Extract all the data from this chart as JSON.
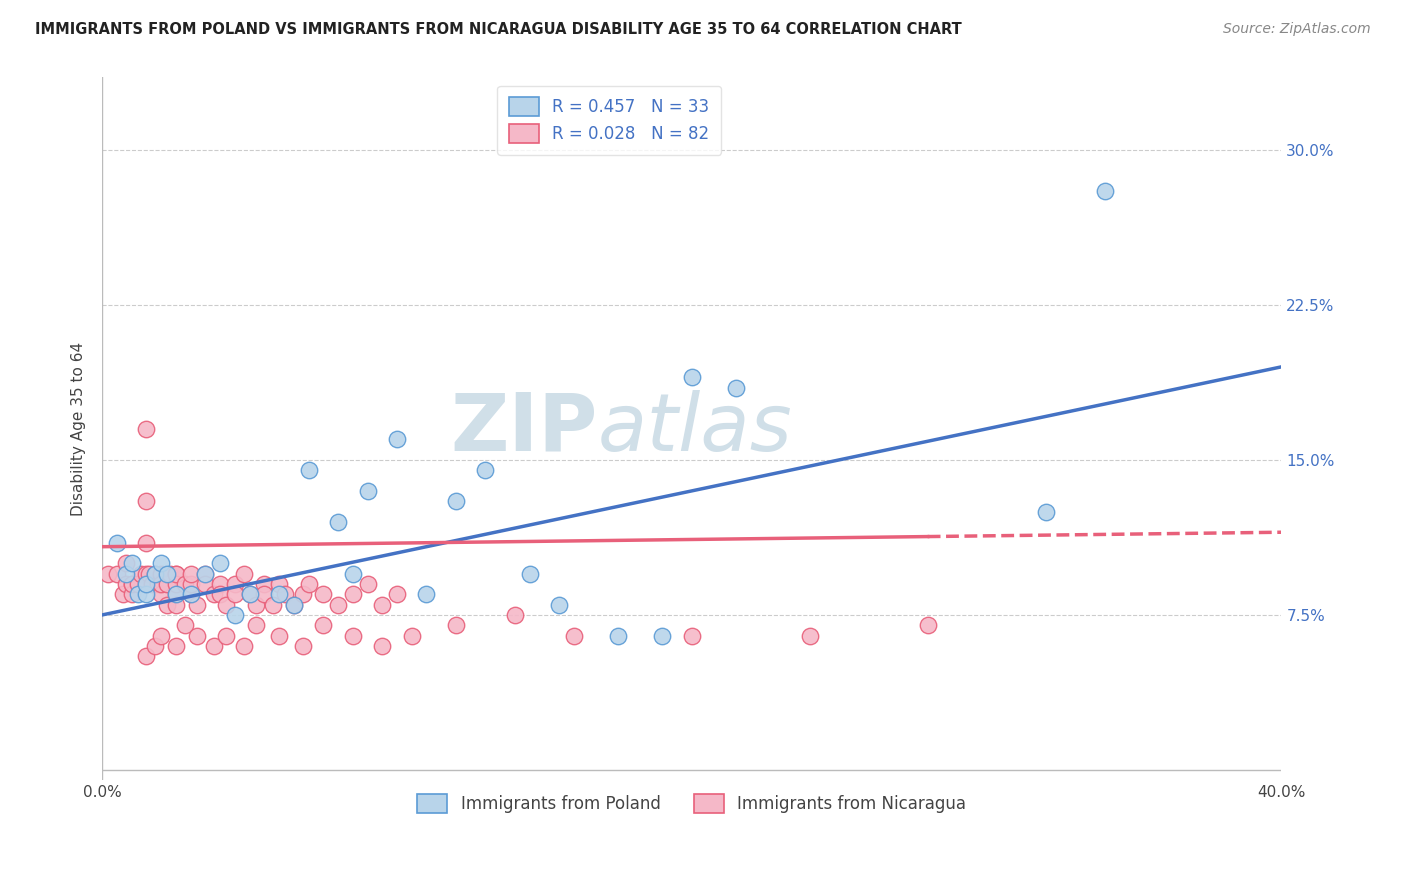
{
  "title": "IMMIGRANTS FROM POLAND VS IMMIGRANTS FROM NICARAGUA DISABILITY AGE 35 TO 64 CORRELATION CHART",
  "source": "Source: ZipAtlas.com",
  "ylabel": "Disability Age 35 to 64",
  "ytick_labels": [
    "7.5%",
    "15.0%",
    "22.5%",
    "30.0%"
  ],
  "ytick_values": [
    0.075,
    0.15,
    0.225,
    0.3
  ],
  "xlim": [
    0.0,
    0.4
  ],
  "ylim": [
    -0.005,
    0.335
  ],
  "legend_poland": "R = 0.457   N = 33",
  "legend_nicaragua": "R = 0.028   N = 82",
  "legend_bottom_poland": "Immigrants from Poland",
  "legend_bottom_nicaragua": "Immigrants from Nicaragua",
  "color_poland_fill": "#b8d4ea",
  "color_nicaragua_fill": "#f5b8c8",
  "color_poland_edge": "#5b9bd5",
  "color_nicaragua_edge": "#e8607a",
  "color_poland_line": "#4472c4",
  "color_nicaragua_line": "#e8607a",
  "watermark_color": "#d0dfe8",
  "poland_x": [
    0.005,
    0.008,
    0.01,
    0.012,
    0.015,
    0.015,
    0.018,
    0.02,
    0.022,
    0.025,
    0.03,
    0.035,
    0.04,
    0.045,
    0.05,
    0.06,
    0.065,
    0.07,
    0.08,
    0.085,
    0.09,
    0.1,
    0.11,
    0.12,
    0.13,
    0.145,
    0.155,
    0.175,
    0.19,
    0.2,
    0.215,
    0.32,
    0.34
  ],
  "poland_y": [
    0.11,
    0.095,
    0.1,
    0.085,
    0.085,
    0.09,
    0.095,
    0.1,
    0.095,
    0.085,
    0.085,
    0.095,
    0.1,
    0.075,
    0.085,
    0.085,
    0.08,
    0.145,
    0.12,
    0.095,
    0.135,
    0.16,
    0.085,
    0.13,
    0.145,
    0.095,
    0.08,
    0.065,
    0.065,
    0.19,
    0.185,
    0.125,
    0.28
  ],
  "nicaragua_x": [
    0.002,
    0.005,
    0.007,
    0.008,
    0.008,
    0.01,
    0.01,
    0.01,
    0.012,
    0.013,
    0.015,
    0.015,
    0.015,
    0.015,
    0.015,
    0.016,
    0.017,
    0.018,
    0.019,
    0.02,
    0.02,
    0.02,
    0.022,
    0.022,
    0.023,
    0.025,
    0.025,
    0.025,
    0.025,
    0.025,
    0.028,
    0.03,
    0.03,
    0.03,
    0.032,
    0.035,
    0.035,
    0.038,
    0.04,
    0.04,
    0.042,
    0.045,
    0.045,
    0.048,
    0.05,
    0.052,
    0.055,
    0.055,
    0.058,
    0.06,
    0.062,
    0.065,
    0.068,
    0.07,
    0.075,
    0.08,
    0.085,
    0.09,
    0.095,
    0.1,
    0.015,
    0.018,
    0.02,
    0.025,
    0.028,
    0.032,
    0.038,
    0.042,
    0.048,
    0.052,
    0.06,
    0.068,
    0.075,
    0.085,
    0.095,
    0.105,
    0.12,
    0.14,
    0.16,
    0.2,
    0.24,
    0.28
  ],
  "nicaragua_y": [
    0.095,
    0.095,
    0.085,
    0.09,
    0.1,
    0.09,
    0.085,
    0.09,
    0.09,
    0.095,
    0.165,
    0.13,
    0.11,
    0.095,
    0.09,
    0.095,
    0.09,
    0.095,
    0.09,
    0.085,
    0.095,
    0.09,
    0.08,
    0.09,
    0.095,
    0.095,
    0.085,
    0.09,
    0.08,
    0.095,
    0.09,
    0.085,
    0.09,
    0.095,
    0.08,
    0.095,
    0.09,
    0.085,
    0.09,
    0.085,
    0.08,
    0.09,
    0.085,
    0.095,
    0.085,
    0.08,
    0.09,
    0.085,
    0.08,
    0.09,
    0.085,
    0.08,
    0.085,
    0.09,
    0.085,
    0.08,
    0.085,
    0.09,
    0.08,
    0.085,
    0.055,
    0.06,
    0.065,
    0.06,
    0.07,
    0.065,
    0.06,
    0.065,
    0.06,
    0.07,
    0.065,
    0.06,
    0.07,
    0.065,
    0.06,
    0.065,
    0.07,
    0.075,
    0.065,
    0.065,
    0.065,
    0.07
  ],
  "trendline_poland_x0": 0.0,
  "trendline_poland_y0": 0.075,
  "trendline_poland_x1": 0.4,
  "trendline_poland_y1": 0.195,
  "trendline_nicaragua_x0": 0.0,
  "trendline_nicaragua_y0": 0.108,
  "trendline_nicaragua_x1": 0.4,
  "trendline_nicaragua_y1": 0.115,
  "trendline_nicaragua_solid_end": 0.28
}
